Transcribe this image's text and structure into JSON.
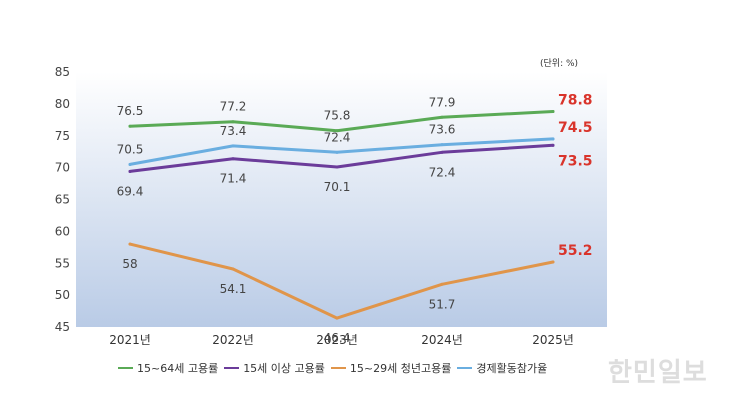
{
  "chart_data": {
    "type": "line",
    "title": "",
    "unit_label": "(단위: %)",
    "categories": [
      "2021년",
      "2022년",
      "2023년",
      "2024년",
      "2025년"
    ],
    "ylim": [
      45,
      85
    ],
    "yticks": [
      "45",
      "50",
      "55",
      "60",
      "65",
      "70",
      "75",
      "80",
      "85"
    ],
    "grid": false,
    "legend_position": "bottom",
    "series": [
      {
        "name": "15~64세 고용률",
        "color": "#5aaa56",
        "values": [
          76.5,
          77.2,
          75.8,
          77.9,
          78.8
        ],
        "labels": [
          "76.5",
          "77.2",
          "75.8",
          "77.9",
          "78.8"
        ],
        "label_side": "above"
      },
      {
        "name": "15세 이상 고용률",
        "color": "#6b3c9a",
        "values": [
          69.4,
          71.4,
          70.1,
          72.4,
          73.5
        ],
        "labels": [
          "69.4",
          "71.4",
          "70.1",
          "72.4",
          "73.5"
        ],
        "label_side": "below"
      },
      {
        "name": "15~29세 청년고용률",
        "color": "#e0954a",
        "values": [
          58,
          54.1,
          46.4,
          51.7,
          55.2
        ],
        "labels": [
          "58",
          "54.1",
          "46.4",
          "51.7",
          "55.2"
        ],
        "label_side": "below"
      },
      {
        "name": "경제활동참가율",
        "color": "#6aaee0",
        "values": [
          70.5,
          73.4,
          72.4,
          73.6,
          74.5
        ],
        "labels": [
          "70.5",
          "73.4",
          "72.4",
          "73.6",
          "74.5"
        ],
        "label_side": "above"
      }
    ],
    "highlight_color": "#d9342b"
  },
  "watermark": "한민일보"
}
